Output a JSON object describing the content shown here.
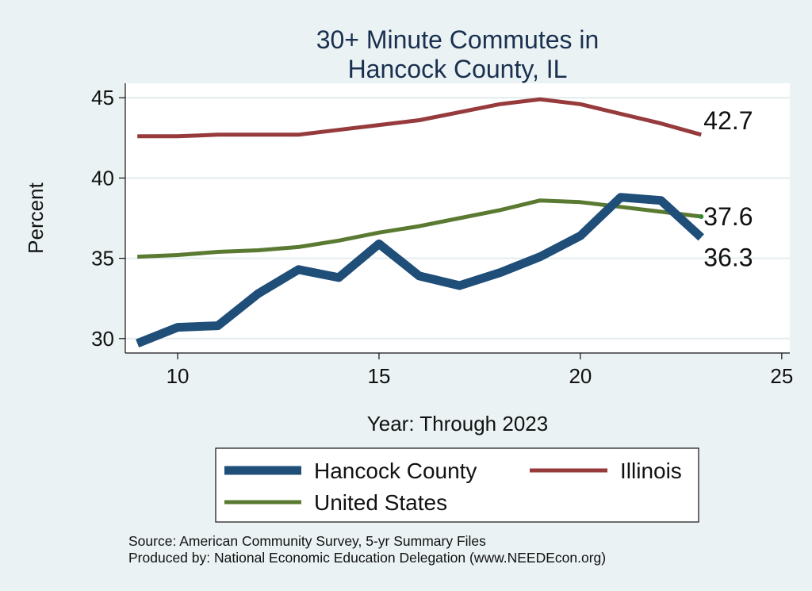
{
  "chart_data": {
    "type": "line",
    "title_lines": [
      "30+ Minute Commutes in",
      "Hancock County, IL"
    ],
    "xlabel": "Year: Through 2023",
    "ylabel": "Percent",
    "xlim": [
      8.7,
      25.2
    ],
    "ylim": [
      29.1,
      45.9
    ],
    "xticks": [
      10,
      15,
      20,
      25
    ],
    "yticks": [
      30,
      35,
      40,
      45
    ],
    "grid": true,
    "legend_position": "bottom",
    "series": [
      {
        "name": "Hancock County",
        "color": "#1f4e79",
        "width": 11,
        "x": [
          9,
          10,
          11,
          12,
          13,
          14,
          15,
          16,
          17,
          18,
          19,
          20,
          21,
          22,
          23
        ],
        "y": [
          29.7,
          30.7,
          30.8,
          32.8,
          34.3,
          33.8,
          35.9,
          33.9,
          33.3,
          34.1,
          35.1,
          36.4,
          38.8,
          38.6,
          36.3
        ],
        "end_label": "36.3"
      },
      {
        "name": "Illinois",
        "color": "#963a3c",
        "width": 5,
        "x": [
          9,
          10,
          11,
          12,
          13,
          14,
          15,
          16,
          17,
          18,
          19,
          20,
          21,
          22,
          23
        ],
        "y": [
          42.6,
          42.6,
          42.7,
          42.7,
          42.7,
          43.0,
          43.3,
          43.6,
          44.1,
          44.6,
          44.9,
          44.6,
          44.0,
          43.4,
          42.7
        ],
        "end_label": "42.7"
      },
      {
        "name": "United States",
        "color": "#5a7a32",
        "width": 5,
        "x": [
          9,
          10,
          11,
          12,
          13,
          14,
          15,
          16,
          17,
          18,
          19,
          20,
          21,
          22,
          23
        ],
        "y": [
          35.1,
          35.2,
          35.4,
          35.5,
          35.7,
          36.1,
          36.6,
          37.0,
          37.5,
          38.0,
          38.6,
          38.5,
          38.2,
          37.9,
          37.6
        ],
        "end_label": "37.6"
      }
    ],
    "notes": [
      "Source: American Community Survey, 5-yr Summary Files",
      "Produced by: National Economic Education Delegation (www.NEEDEcon.org)"
    ]
  }
}
